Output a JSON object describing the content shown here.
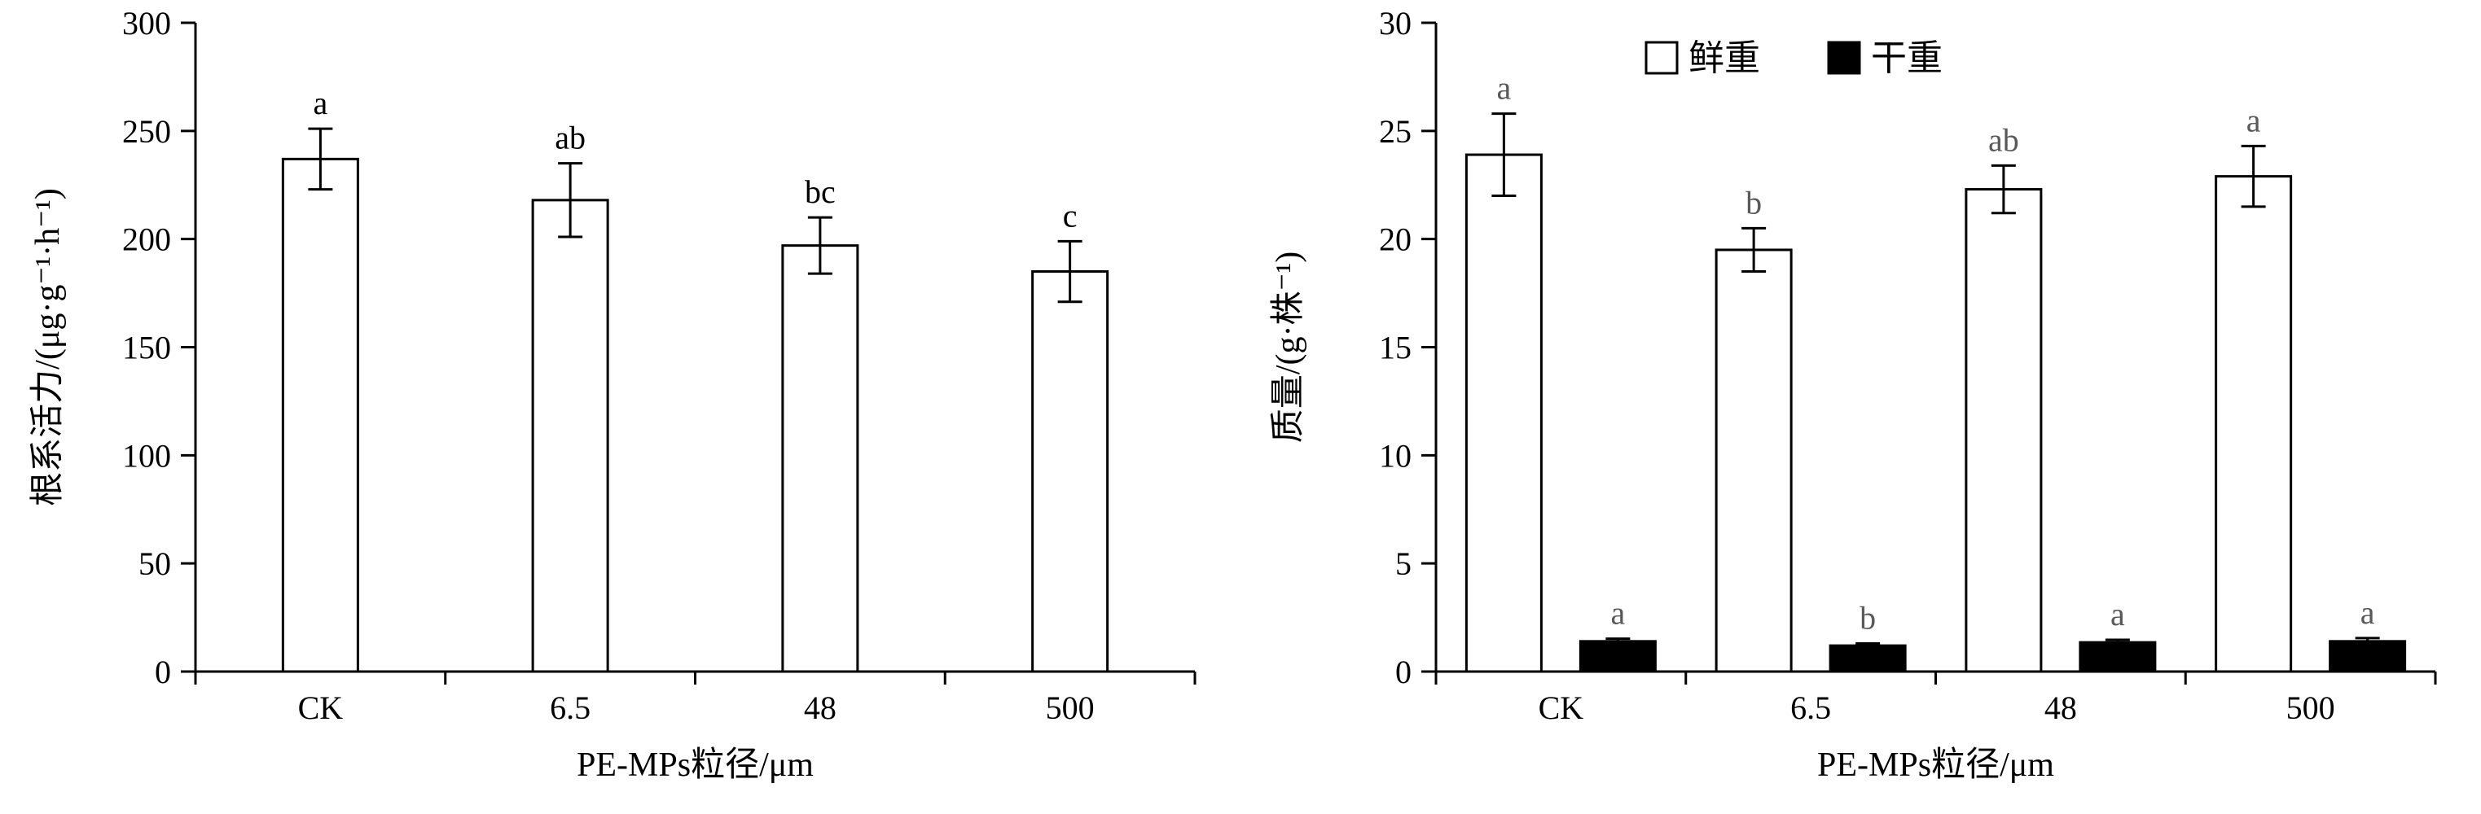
{
  "figure": {
    "background": "#ffffff",
    "description_left": "bar chart of root activity vs PE-MPs particle size",
    "description_right": "grouped bar chart of fresh and dry mass vs PE-MPs particle size"
  },
  "colors": {
    "axis": "#000000",
    "bar_stroke": "#000000",
    "text": "#000000",
    "white_bar_fill": "#ffffff",
    "black_bar_fill": "#000000",
    "sig_left": "#000000",
    "sig_right": "#595959"
  },
  "chart_data": [
    {
      "type": "bar",
      "panel": "left",
      "categories": [
        "CK",
        "6.5",
        "48",
        "500"
      ],
      "series": [
        {
          "name": "根系活力",
          "fill": "#ffffff",
          "values": [
            237,
            218,
            197,
            185
          ],
          "errors": [
            14,
            17,
            13,
            14
          ],
          "sig_labels": [
            "a",
            "ab",
            "bc",
            "c"
          ]
        }
      ],
      "xlabel": "PE-MPs粒径/μm",
      "ylabel": "根系活力/(μg·g⁻¹·h⁻¹)",
      "ylim": [
        0,
        300
      ],
      "ytick_step": 50,
      "sig_color": "#000000",
      "legend": null,
      "grid": false,
      "legend_position": "none"
    },
    {
      "type": "bar",
      "panel": "right",
      "categories": [
        "CK",
        "6.5",
        "48",
        "500"
      ],
      "series": [
        {
          "name": "鲜重",
          "fill": "#ffffff",
          "values": [
            23.9,
            19.5,
            22.3,
            22.9
          ],
          "errors": [
            1.9,
            1.0,
            1.1,
            1.4
          ],
          "sig_labels": [
            "a",
            "b",
            "ab",
            "a"
          ]
        },
        {
          "name": "干重",
          "fill": "#000000",
          "values": [
            1.4,
            1.2,
            1.35,
            1.4
          ],
          "errors": [
            0.12,
            0.1,
            0.12,
            0.15
          ],
          "sig_labels": [
            "a",
            "b",
            "a",
            "a"
          ]
        }
      ],
      "xlabel": "PE-MPs粒径/μm",
      "ylabel": "质量/(g·株⁻¹)",
      "ylim": [
        0,
        30
      ],
      "ytick_step": 5,
      "sig_color": "#595959",
      "legend": {
        "items": [
          {
            "label": "鲜重",
            "fill": "#ffffff"
          },
          {
            "label": "干重",
            "fill": "#000000"
          }
        ]
      },
      "grid": false,
      "legend_position": "top-inside"
    }
  ]
}
